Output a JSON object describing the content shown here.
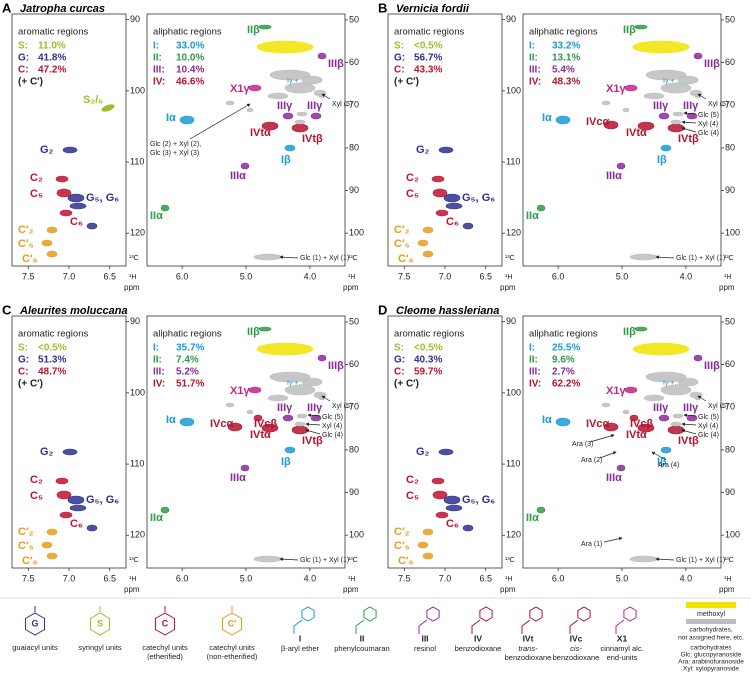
{
  "labels": {
    "aromatic": "aromatic regions",
    "aliphatic": "aliphatic regions",
    "aromatic_keys": [
      "S:",
      "G:",
      "C:"
    ],
    "aliphatic_keys": [
      "I:",
      "II:",
      "III:",
      "IV:"
    ],
    "extra": "(+ C′)"
  },
  "axes": {
    "aromatic": {
      "xlim": [
        7.7,
        6.3
      ],
      "ylim": [
        89.2,
        124.6
      ],
      "xticks": [
        7.5,
        {
          "value": 7,
          "label": "7.0"
        },
        6.5
      ],
      "yticks": [
        90,
        100,
        110,
        120
      ]
    },
    "aliphatic": {
      "xlim": [
        6.55,
        3.45
      ],
      "ylim": [
        48.6,
        107.7
      ],
      "xticks": [
        {
          "value": 6,
          "label": "6.0"
        },
        {
          "value": 5,
          "label": "5.0"
        },
        {
          "value": 4,
          "label": "4.0"
        }
      ],
      "yticks": [
        50,
        60,
        70,
        80,
        90,
        100
      ]
    },
    "y_unit": "¹³C",
    "x_unit": "¹H",
    "ppm": "ppm"
  },
  "colors": {
    "S": "#9cbf2e",
    "G": "#2e3192",
    "C": "#c1122f",
    "Cp": "#e89b1c",
    "I": "#1b9ad6",
    "II": "#2e9b45",
    "III": "#8a2b9b",
    "IV": "#b5132e",
    "X1": "#c2268a",
    "methoxyl": "#f2e400",
    "carb": "#bdbdbd",
    "text": "#222222"
  },
  "panels": [
    {
      "letter": "A",
      "species": "Jatropha curcas",
      "aromatic": [
        "11.0%",
        "41.8%",
        "47.2%"
      ],
      "aliphatic": [
        "33.0%",
        "10.0%",
        "10.4%",
        "46.6%"
      ],
      "aromatic_peaks": [
        "S₂/₆",
        "G₂",
        "C₂",
        "C₅",
        "G₅, G₆",
        "C₆",
        "C′₂",
        "C′₅",
        "C′₆"
      ],
      "aliphatic_peaks": [
        "IIβ",
        "IIIβ",
        "Iγ +...",
        "X1γ",
        "Xyl (5)",
        "Iα",
        "IIIγ",
        "IIIγ",
        "IVtα",
        "IVtβ",
        "Iβ",
        "IIIα",
        "IIα",
        "Glc (1) + Xyl (1)",
        "Glc (2) + Xyl (2),",
        "Glc (3) + Xyl (3)"
      ]
    },
    {
      "letter": "B",
      "species": "Vernicia fordii",
      "aromatic": [
        "<0.5%",
        "56.7%",
        "43.3%"
      ],
      "aliphatic": [
        "33.2%",
        "13.1%",
        "5.4%",
        "48.3%"
      ],
      "aromatic_peaks": [
        "G₂",
        "C₂",
        "C₅",
        "G₅, G₆",
        "C₆",
        "C′₂",
        "C′₅",
        "C′₆"
      ],
      "aliphatic_peaks": [
        "IIβ",
        "IIIβ",
        "Iγ +...",
        "X1γ",
        "Xyl (5)",
        "Iα",
        "IIIγ",
        "IIIγ",
        "IVtα",
        "IVtβ",
        "Iβ",
        "IIIα",
        "IIα",
        "Glc (1) + Xyl (1)",
        "IVcα",
        "Glc (5)",
        "Xyl (4)",
        "Glc (4)"
      ]
    },
    {
      "letter": "C",
      "species": "Aleurites moluccana",
      "aromatic": [
        "<0.5%",
        "51.3%",
        "48.7%"
      ],
      "aliphatic": [
        "35.7%",
        "7.4%",
        "5.2%",
        "51.7%"
      ],
      "aromatic_peaks": [
        "G₂",
        "C₂",
        "C₅",
        "G₅, G₆",
        "C₆",
        "C′₂",
        "C′₅",
        "C′₆"
      ],
      "aliphatic_peaks": [
        "IIβ",
        "IIIβ",
        "Iγ +...",
        "X1γ",
        "Xyl (5)",
        "Iα",
        "IIIγ",
        "IIIγ",
        "IVtα",
        "IVtβ",
        "Iβ",
        "IIIα",
        "IIα",
        "Glc (1) + Xyl (1)",
        "IVcα",
        "Glc (5)",
        "Xyl (4)",
        "Glc (4)",
        "IVcβ"
      ]
    },
    {
      "letter": "D",
      "species": "Cleome hassleriana",
      "aromatic": [
        "<0.5%",
        "40.3%",
        "59.7%"
      ],
      "aliphatic": [
        "25.5%",
        "9.6%",
        "2.7%",
        "62.2%"
      ],
      "aromatic_peaks": [
        "G₂",
        "C₂",
        "C₅",
        "G₅, G₆",
        "C₆",
        "C′₂",
        "C′₅",
        "C′₆"
      ],
      "aliphatic_peaks": [
        "IIβ",
        "IIIβ",
        "Iγ +...",
        "X1γ",
        "Xyl (5)",
        "Iα",
        "IIIγ",
        "IIIγ",
        "IVtα",
        "IVtβ",
        "Iβ",
        "IIIα",
        "IIα",
        "Glc (1) + Xyl (1)",
        "IVcα",
        "Glc (5)",
        "Xyl (4)",
        "Glc (4)",
        "IVcβ",
        "Ara (3)",
        "Ara (2)",
        "Ara (4)",
        "Ara (1)"
      ]
    }
  ],
  "legend": {
    "units": [
      {
        "symbol": "G",
        "name": [
          "guaiacyl units"
        ]
      },
      {
        "symbol": "S",
        "name": [
          "syringyl units"
        ]
      },
      {
        "symbol": "C",
        "name": [
          "catechyl units",
          "(etherified)"
        ]
      },
      {
        "symbol": "C′",
        "name": [
          "catechyl units",
          "(non-etherified)"
        ]
      }
    ],
    "linkages": [
      {
        "id": "I",
        "name": [
          "β-aryl ether"
        ]
      },
      {
        "id": "II",
        "name": [
          "phenylcoumaran"
        ]
      },
      {
        "id": "III",
        "name": [
          "resinol"
        ]
      },
      {
        "id": "IV",
        "name": [
          "benzodioxane"
        ]
      },
      {
        "id": "IVt",
        "name": [
          "trans-",
          "benzodioxane"
        ]
      },
      {
        "id": "IVc",
        "name": [
          "cis-",
          "benzodioxane"
        ]
      },
      {
        "id": "X1",
        "name": [
          "cinnamyl alc.",
          "end-units"
        ]
      }
    ],
    "methoxyl": "methoxyl",
    "carbohydrates_unassigned": [
      "carbohydrates,",
      "not assigned here, etc."
    ],
    "carbohydrates": [
      "carbohydrates",
      "Glc: glucopyranoside",
      "Ara: arabinofuranoside",
      "Xyl: xylopyranoside"
    ]
  }
}
